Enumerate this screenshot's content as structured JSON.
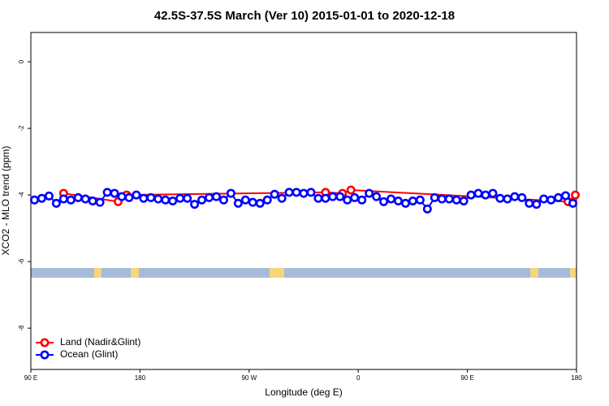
{
  "chart_data": {
    "type": "line",
    "title": "42.5S-37.5S March (Ver 10)   2015-01-01 to 2020-12-18",
    "xlabel": "Longitude (deg E)",
    "ylabel": "XCO2 - MLO trend (ppm)",
    "xlim": [
      90,
      540
    ],
    "ylim": [
      -9.24,
      0.88
    ],
    "xticks": [
      {
        "value": 90,
        "label": "90 E"
      },
      180,
      {
        "value": 270,
        "label": "90 W"
      },
      {
        "value": 360,
        "label": "0"
      },
      {
        "value": 450,
        "label": "90 E"
      },
      {
        "value": 540,
        "label": "180"
      }
    ],
    "yticks": [
      0,
      -2,
      -4,
      -6,
      -8
    ],
    "legend": "bottom-left",
    "series": [
      {
        "name": "Land (Nadir&Glint)",
        "color": "#ff0000",
        "x": [
          117,
          162,
          169,
          333,
          347,
          354,
          533,
          539
        ],
        "values": [
          -3.95,
          -4.2,
          -4.0,
          -3.92,
          -3.95,
          -3.85,
          -4.2,
          -4.0
        ]
      },
      {
        "name": "Ocean (Glint)",
        "color": "#0000ff",
        "x": [
          93,
          99,
          105,
          111,
          117,
          123,
          129,
          135,
          141,
          147,
          153,
          159,
          165,
          171,
          177,
          183,
          189,
          195,
          201,
          207,
          213,
          219,
          225,
          231,
          237,
          243,
          249,
          255,
          261,
          267,
          273,
          279,
          285,
          291,
          297,
          303,
          309,
          315,
          321,
          327,
          333,
          339,
          345,
          351,
          357,
          363,
          369,
          375,
          381,
          387,
          393,
          399,
          405,
          411,
          417,
          423,
          429,
          435,
          441,
          447,
          453,
          459,
          465,
          471,
          477,
          483,
          489,
          495,
          501,
          507,
          513,
          519,
          525,
          531,
          537
        ],
        "values": [
          -4.15,
          -4.1,
          -4.03,
          -4.25,
          -4.12,
          -4.15,
          -4.08,
          -4.12,
          -4.18,
          -4.22,
          -3.92,
          -3.95,
          -4.05,
          -4.08,
          -4.0,
          -4.1,
          -4.08,
          -4.12,
          -4.15,
          -4.18,
          -4.1,
          -4.1,
          -4.28,
          -4.15,
          -4.08,
          -4.05,
          -4.15,
          -3.95,
          -4.25,
          -4.15,
          -4.22,
          -4.25,
          -4.15,
          -3.98,
          -4.1,
          -3.92,
          -3.92,
          -3.95,
          -3.92,
          -4.1,
          -4.1,
          -4.05,
          -4.05,
          -4.15,
          -4.08,
          -4.15,
          -3.95,
          -4.05,
          -4.2,
          -4.12,
          -4.18,
          -4.25,
          -4.18,
          -4.15,
          -4.42,
          -4.08,
          -4.12,
          -4.12,
          -4.15,
          -4.18,
          -4.0,
          -3.95,
          -4.0,
          -3.95,
          -4.1,
          -4.12,
          -4.05,
          -4.08,
          -4.25,
          -4.28,
          -4.12,
          -4.15,
          -4.08,
          -4.02,
          -4.25
        ]
      }
    ]
  }
}
